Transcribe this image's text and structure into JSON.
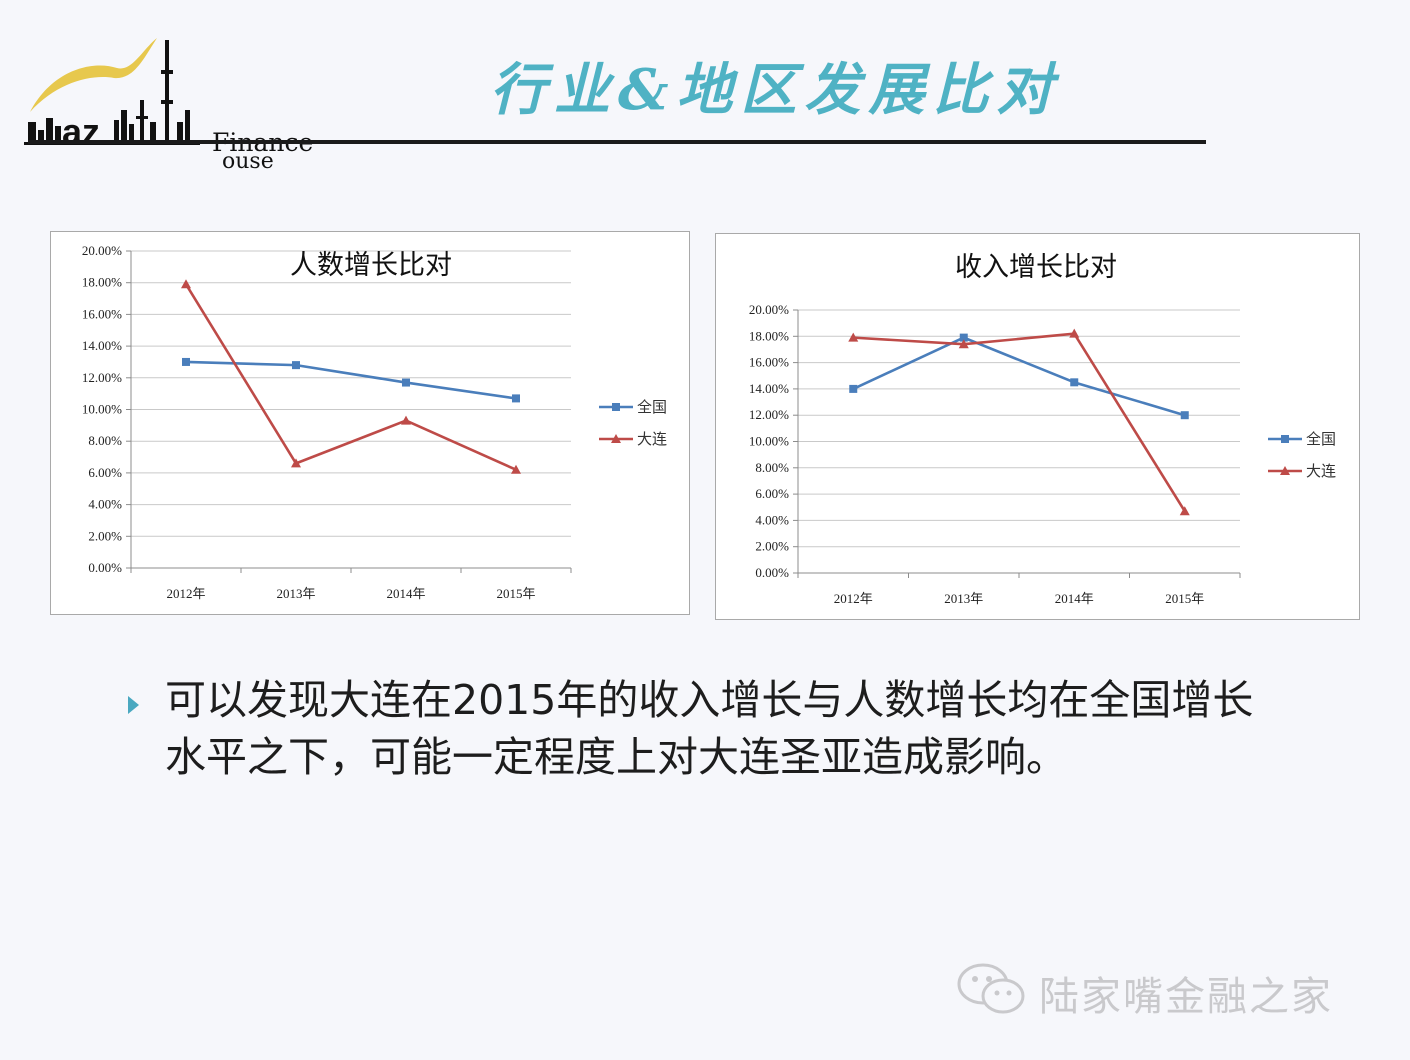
{
  "logo": {
    "finance": "Finance",
    "house": "ouse"
  },
  "title": "行业&地区发展比对",
  "colors": {
    "national": "#4a7ebb",
    "dalian": "#be4b48",
    "title": "#4fb2c4"
  },
  "chart_data": [
    {
      "type": "line",
      "title": "人数增长比对",
      "categories": [
        "2012年",
        "2013年",
        "2014年",
        "2015年"
      ],
      "y_ticks": [
        "0.00%",
        "2.00%",
        "4.00%",
        "6.00%",
        "8.00%",
        "10.00%",
        "12.00%",
        "14.00%",
        "16.00%",
        "18.00%",
        "20.00%"
      ],
      "ylim": [
        0,
        20
      ],
      "series": [
        {
          "name": "全国",
          "values": [
            13.0,
            12.8,
            11.7,
            10.7
          ],
          "marker": "square"
        },
        {
          "name": "大连",
          "values": [
            17.9,
            6.6,
            9.3,
            6.2
          ],
          "marker": "triangle"
        }
      ],
      "grid": true,
      "legend": "right"
    },
    {
      "type": "line",
      "title": "收入增长比对",
      "categories": [
        "2012年",
        "2013年",
        "2014年",
        "2015年"
      ],
      "y_ticks": [
        "0.00%",
        "2.00%",
        "4.00%",
        "6.00%",
        "8.00%",
        "10.00%",
        "12.00%",
        "14.00%",
        "16.00%",
        "18.00%",
        "20.00%"
      ],
      "ylim": [
        0,
        20
      ],
      "series": [
        {
          "name": "全国",
          "values": [
            14.0,
            17.9,
            14.5,
            12.0
          ],
          "marker": "square"
        },
        {
          "name": "大连",
          "values": [
            17.9,
            17.4,
            18.2,
            4.7
          ],
          "marker": "triangle"
        }
      ],
      "grid": true,
      "legend": "right"
    }
  ],
  "bullet": "可以发现大连在2015年的收入增长与人数增长均在全国增长水平之下，可能一定程度上对大连圣亚造成影响。",
  "watermark": "陆家嘴金融之家"
}
